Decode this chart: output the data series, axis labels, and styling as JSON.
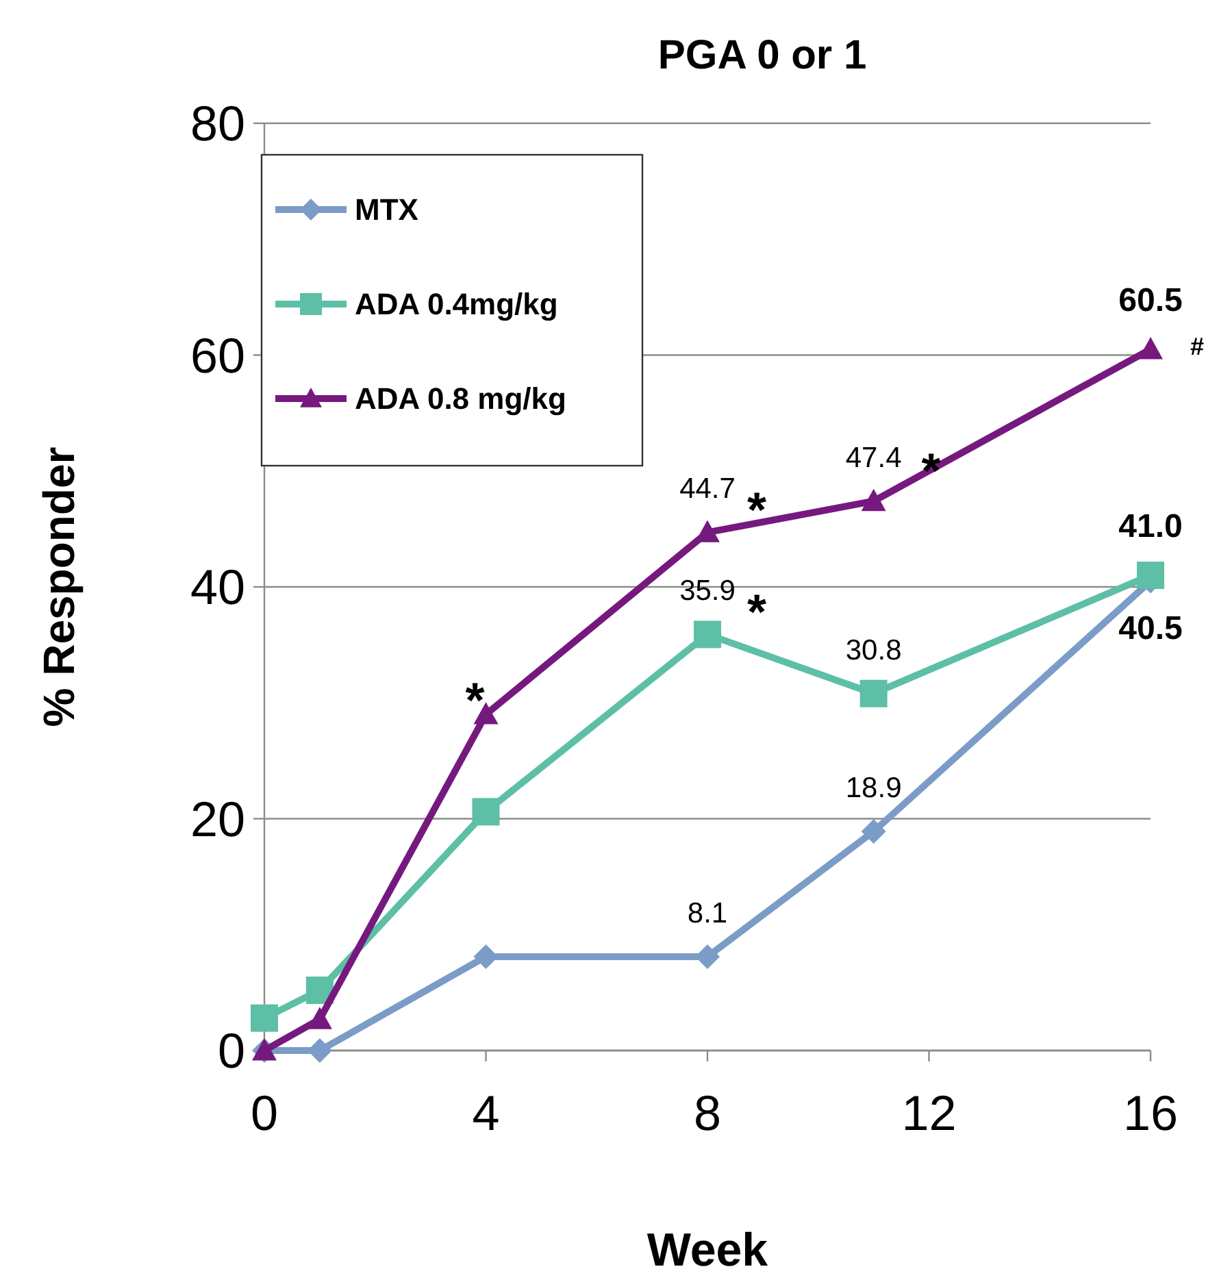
{
  "chart_data": {
    "type": "line",
    "title": "PGA 0 or 1",
    "xlabel": "Week",
    "ylabel": "% Responder",
    "xlim": [
      0,
      16
    ],
    "xticks": [
      0,
      4,
      8,
      12,
      16
    ],
    "ylim": [
      0,
      80
    ],
    "yticks": [
      0,
      20,
      40,
      60,
      80
    ],
    "grid": "y",
    "legend": "top left",
    "line_style": "solid",
    "series": [
      {
        "name": "MTX",
        "color": "#7a9cc6",
        "marker": "diamond",
        "x": [
          0,
          1,
          4,
          8,
          11,
          16
        ],
        "values": [
          0,
          0,
          8.1,
          8.1,
          18.9,
          40.5
        ],
        "value_labels": [
          null,
          null,
          null,
          "8.1",
          "18.9",
          "40.5"
        ]
      },
      {
        "name": "ADA 0.4mg/kg",
        "color": "#5dbfa6",
        "marker": "square",
        "x": [
          0,
          1,
          4,
          8,
          11,
          16
        ],
        "values": [
          2.8,
          5.2,
          20.6,
          35.9,
          30.8,
          41.0
        ],
        "value_labels": [
          null,
          null,
          null,
          "35.9",
          "30.8",
          "41.0"
        ]
      },
      {
        "name": "ADA 0.8 mg/kg",
        "color": "#76197f",
        "marker": "triangle",
        "x": [
          0,
          1,
          4,
          8,
          11,
          16
        ],
        "values": [
          0,
          2.7,
          29.0,
          44.7,
          47.4,
          60.5
        ],
        "value_labels": [
          null,
          null,
          null,
          "44.7",
          "47.4",
          "60.5"
        ]
      }
    ],
    "annotations": [
      {
        "text": "*",
        "x": 4,
        "y": 29.0
      },
      {
        "text": "*",
        "x": 8,
        "y": 44.7
      },
      {
        "text": "*",
        "x": 8,
        "y": 35.9
      },
      {
        "text": "*",
        "x": 11,
        "y": 47.4
      },
      {
        "text": "#",
        "x": 16,
        "y": 60.5
      }
    ]
  }
}
